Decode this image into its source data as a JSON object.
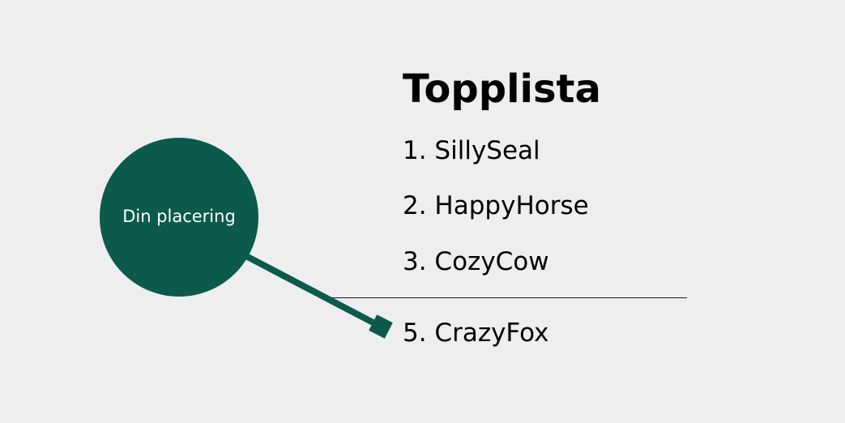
{
  "leaderboard": {
    "title": "Topplista",
    "top_entries": [
      {
        "text": "1. SillySeal"
      },
      {
        "text": "2. HappyHorse"
      },
      {
        "text": "3. CozyCow"
      }
    ],
    "own_entry": {
      "text": "5. CrazyFox"
    }
  },
  "callout": {
    "label": "Din placering",
    "color": "#0b5a4b"
  }
}
